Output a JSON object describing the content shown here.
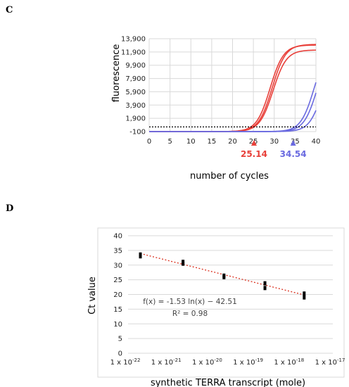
{
  "panel_c": {
    "letter": "C",
    "colors": {
      "early": "#e8403a",
      "late": "#6a6ae0",
      "threshold": "#000000"
    },
    "chart_data": {
      "type": "line",
      "xlabel": "number of cycles",
      "ylabel": "fluorescence",
      "x_ticks": [
        0,
        5,
        10,
        15,
        20,
        25,
        30,
        35,
        40
      ],
      "y_ticks": [
        "13,900",
        "11,900",
        "9,900",
        "7,900",
        "5,900",
        "3,900",
        "1,900",
        "-100"
      ],
      "y_tick_values": [
        13900,
        11900,
        9900,
        7900,
        5900,
        3900,
        1900,
        -100
      ],
      "xlim": [
        0,
        40
      ],
      "ylim": [
        -100,
        13900
      ],
      "threshold": 600,
      "grid": true,
      "series": [
        {
          "group": "early",
          "midpoint": 29.5,
          "max": 13150,
          "slope": 0.62
        },
        {
          "group": "early",
          "midpoint": 29.0,
          "max": 13050,
          "slope": 0.62
        },
        {
          "group": "early",
          "midpoint": 29.7,
          "max": 12300,
          "slope": 0.62
        },
        {
          "group": "late",
          "midpoint": 39.6,
          "max": 13200,
          "slope": 0.62
        },
        {
          "group": "late",
          "midpoint": 40.4,
          "max": 13300,
          "slope": 0.62
        },
        {
          "group": "late",
          "midpoint": 41.8,
          "max": 13000,
          "slope": 0.62
        }
      ],
      "markers": [
        {
          "x": 25.14,
          "label": "25.14",
          "group": "early"
        },
        {
          "x": 34.54,
          "label": "34.54",
          "group": "late"
        }
      ]
    }
  },
  "panel_d": {
    "letter": "D",
    "colors": {
      "trend": "#d9301e",
      "points": "#000000"
    },
    "chart_data": {
      "type": "scatter",
      "xlabel": "synthetic TERRA transcript (mole)",
      "ylabel": "Ct value",
      "x_scale": "log",
      "x_ticks_exp": [
        -22,
        -21,
        -20,
        -19,
        -18,
        -17
      ],
      "x_tick_prefix": "1 x 10",
      "y_ticks": [
        0,
        5,
        10,
        15,
        20,
        25,
        30,
        35,
        40
      ],
      "xlim": [
        1e-22,
        1e-17
      ],
      "ylim": [
        0,
        40
      ],
      "grid": "horizontal",
      "points": [
        {
          "x": 2e-22,
          "y": 33.6
        },
        {
          "x": 2e-22,
          "y": 33.0
        },
        {
          "x": 2.2e-21,
          "y": 31.1
        },
        {
          "x": 2.2e-21,
          "y": 30.5
        },
        {
          "x": 2.2e-20,
          "y": 26.4
        },
        {
          "x": 2.2e-20,
          "y": 25.9
        },
        {
          "x": 2.2e-19,
          "y": 23.8
        },
        {
          "x": 2.2e-19,
          "y": 22.2
        },
        {
          "x": 2e-18,
          "y": 20.3
        },
        {
          "x": 2e-18,
          "y": 19.0
        }
      ],
      "trendline": {
        "a": -1.53,
        "b": -42.51,
        "x_from": 2e-22,
        "x_to": 2e-18
      },
      "equation": "f(x) = -1.53 ln(x) − 42.51",
      "r_squared": "R² = 0.98"
    }
  }
}
